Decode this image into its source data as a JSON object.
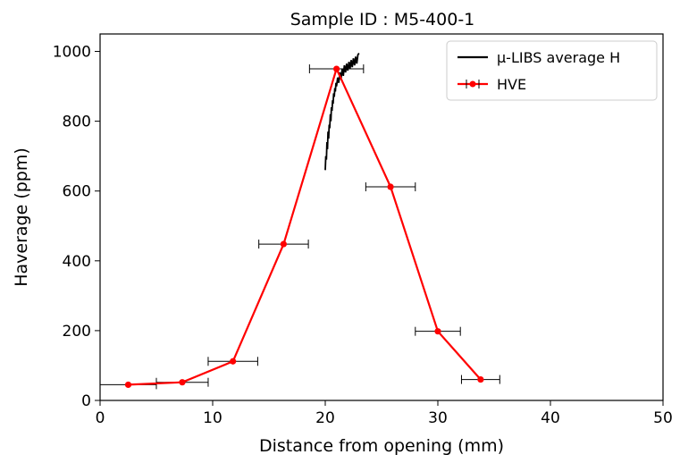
{
  "chart_data": {
    "type": "line",
    "title": "Sample ID : M5-400-1",
    "xlabel": "Distance from opening (mm)",
    "ylabel": "Haverage (ppm)",
    "xlim": [
      0,
      50
    ],
    "ylim": [
      0,
      1050
    ],
    "xticks": [
      0,
      10,
      20,
      30,
      40,
      50
    ],
    "yticks": [
      0,
      200,
      400,
      600,
      800,
      1000
    ],
    "grid": false,
    "legend_position": "top-right",
    "series": [
      {
        "name": "µ-LIBS average H",
        "color": "#000000",
        "style": "line",
        "x": [
          20.0,
          20.05,
          20.1,
          20.15,
          20.2,
          20.25,
          20.3,
          20.35,
          20.4,
          20.45,
          20.5,
          20.55,
          20.6,
          20.65,
          20.7,
          20.75,
          20.8,
          20.85,
          20.9,
          20.95,
          21.0,
          21.1,
          21.2,
          21.3,
          21.4,
          21.5,
          21.6,
          21.7,
          21.8,
          21.9,
          22.0,
          22.1,
          22.2,
          22.3,
          22.4,
          22.5,
          22.6,
          22.7,
          22.8,
          22.9,
          23.0
        ],
        "y": [
          660,
          700,
          690,
          740,
          720,
          770,
          750,
          790,
          780,
          820,
          800,
          840,
          830,
          860,
          850,
          880,
          870,
          895,
          885,
          910,
          900,
          925,
          910,
          940,
          920,
          950,
          930,
          960,
          940,
          965,
          945,
          970,
          950,
          975,
          955,
          980,
          960,
          985,
          965,
          990,
          995
        ]
      },
      {
        "name": "HVE",
        "color": "#ff0000",
        "style": "line-markers-errorbar",
        "x": [
          2.5,
          7.3,
          11.8,
          16.3,
          21.0,
          25.8,
          30.0,
          33.8
        ],
        "y": [
          45,
          52,
          112,
          448,
          950,
          612,
          198,
          60
        ],
        "xerr": [
          2.5,
          2.3,
          2.2,
          2.2,
          2.4,
          2.2,
          2.0,
          1.7
        ]
      }
    ]
  }
}
